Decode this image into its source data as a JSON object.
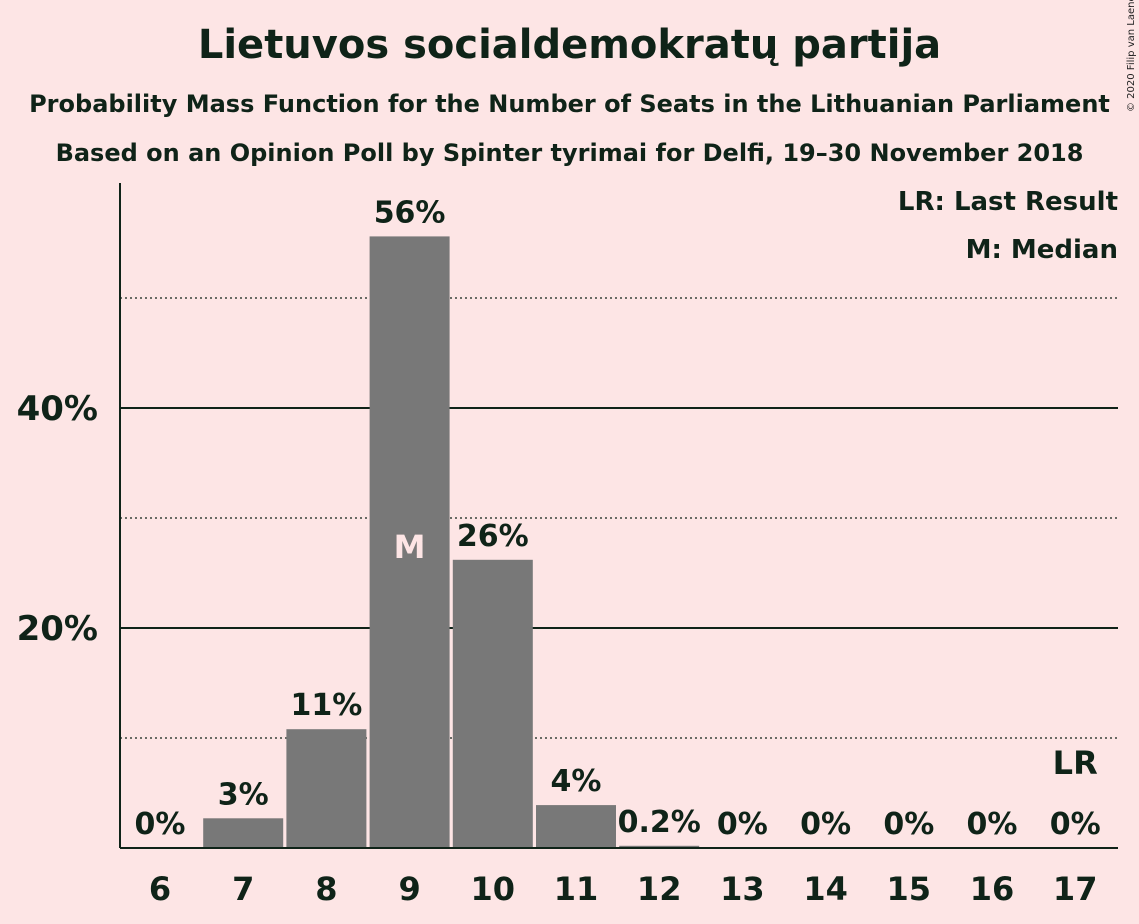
{
  "chart_data": {
    "type": "bar",
    "title": "Lietuvos socialdemokratų partija",
    "subtitle": "Probability Mass Function for the Number of Seats in the Lithuanian Parliament",
    "subtitle2": "Based on an Opinion Poll by Spinter tyrimai for Delfi, 19–30 November 2018",
    "copyright": "© 2020 Filip van Laenen",
    "categories": [
      "6",
      "7",
      "8",
      "9",
      "10",
      "11",
      "12",
      "13",
      "14",
      "15",
      "16",
      "17"
    ],
    "values": [
      0,
      2.7,
      10.8,
      55.6,
      26.2,
      3.9,
      0.2,
      0,
      0,
      0,
      0,
      0
    ],
    "data_labels": [
      "0%",
      "3%",
      "11%",
      "56%",
      "26%",
      "4%",
      "0.2%",
      "0%",
      "0%",
      "0%",
      "0%",
      "0%"
    ],
    "ylim": [
      0,
      60
    ],
    "yticks": [
      20,
      40
    ],
    "ytick_labels": [
      "20%",
      "40%"
    ],
    "minor_gridlines": [
      10,
      30,
      50
    ],
    "median_category": "9",
    "median_marker": "M",
    "last_result_category": "17",
    "last_result_marker": "LR",
    "legend": [
      "LR: Last Result",
      "M: Median"
    ],
    "legend_position": "top-right",
    "colors": {
      "background": "#fde5e5",
      "bar": "#787878",
      "text": "#0f2318",
      "median_text": "#fde5e5"
    }
  }
}
